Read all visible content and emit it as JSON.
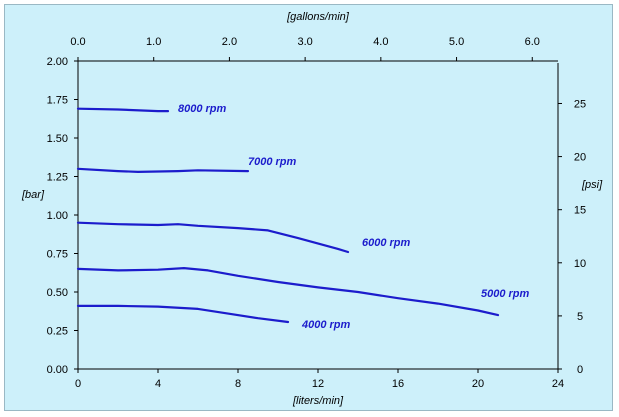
{
  "chart_data": {
    "type": "line",
    "axes": {
      "x_bottom": {
        "label": "[liters/min]",
        "range": [
          0,
          24
        ],
        "ticks": [
          "0",
          "4",
          "8",
          "12",
          "16",
          "20",
          "24"
        ]
      },
      "x_top": {
        "label": "[gallons/min]",
        "range": [
          0,
          6.34
        ],
        "ticks": [
          "0.0",
          "1.0",
          "2.0",
          "3.0",
          "4.0",
          "5.0",
          "6.0"
        ]
      },
      "y_left": {
        "label": "[bar]",
        "range": [
          0,
          2
        ],
        "ticks": [
          "0.00",
          "0.25",
          "0.50",
          "0.75",
          "1.00",
          "1.25",
          "1.50",
          "1.75",
          "2.00"
        ]
      },
      "y_right": {
        "label": "[psi]",
        "range": [
          0,
          29
        ],
        "ticks": [
          "0",
          "5",
          "10",
          "15",
          "20",
          "25"
        ]
      }
    },
    "grid": false,
    "line_color": "#1c1ccc",
    "series": [
      {
        "name": "8000 rpm",
        "points": [
          [
            0,
            1.69
          ],
          [
            2,
            1.685
          ],
          [
            4,
            1.675
          ],
          [
            4.5,
            1.675
          ]
        ]
      },
      {
        "name": "7000 rpm",
        "points": [
          [
            0,
            1.3
          ],
          [
            2,
            1.285
          ],
          [
            3,
            1.28
          ],
          [
            5,
            1.285
          ],
          [
            6,
            1.29
          ],
          [
            8.5,
            1.285
          ]
        ]
      },
      {
        "name": "6000 rpm",
        "points": [
          [
            0,
            0.95
          ],
          [
            2,
            0.94
          ],
          [
            4,
            0.935
          ],
          [
            5,
            0.94
          ],
          [
            6,
            0.93
          ],
          [
            8,
            0.915
          ],
          [
            9.5,
            0.9
          ],
          [
            11,
            0.85
          ],
          [
            13,
            0.78
          ],
          [
            13.5,
            0.76
          ]
        ]
      },
      {
        "name": "5000 rpm",
        "points": [
          [
            0,
            0.65
          ],
          [
            2,
            0.64
          ],
          [
            4,
            0.645
          ],
          [
            5.3,
            0.655
          ],
          [
            6.5,
            0.64
          ],
          [
            8,
            0.605
          ],
          [
            10,
            0.565
          ],
          [
            12,
            0.53
          ],
          [
            14,
            0.5
          ],
          [
            16,
            0.46
          ],
          [
            18,
            0.425
          ],
          [
            20,
            0.38
          ],
          [
            21,
            0.35
          ]
        ]
      },
      {
        "name": "4000 rpm",
        "points": [
          [
            0,
            0.41
          ],
          [
            2,
            0.41
          ],
          [
            4,
            0.405
          ],
          [
            6,
            0.39
          ],
          [
            7.5,
            0.36
          ],
          [
            9,
            0.33
          ],
          [
            10.5,
            0.305
          ]
        ]
      }
    ],
    "labels": {
      "s8000": "8000 rpm",
      "s7000": "7000 rpm",
      "s6000": "6000 rpm",
      "s5000": "5000 rpm",
      "s4000": "4000 rpm"
    }
  }
}
